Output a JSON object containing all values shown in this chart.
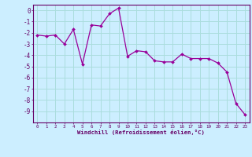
{
  "x": [
    0,
    1,
    2,
    3,
    4,
    5,
    6,
    7,
    8,
    9,
    10,
    11,
    12,
    13,
    14,
    15,
    16,
    17,
    18,
    19,
    20,
    21,
    22,
    23
  ],
  "y": [
    -2.2,
    -2.3,
    -2.2,
    -3.0,
    -1.7,
    -4.8,
    -1.3,
    -1.4,
    -0.3,
    0.2,
    -4.1,
    -3.6,
    -3.7,
    -4.5,
    -4.6,
    -4.6,
    -3.9,
    -4.3,
    -4.3,
    -4.3,
    -4.7,
    -5.5,
    -8.3,
    -9.3
  ],
  "line_color": "#990099",
  "marker_color": "#990099",
  "bg_color": "#cceeff",
  "grid_color": "#aadddd",
  "xlabel": "Windchill (Refroidissement éolien,°C)",
  "xlabel_color": "#660066",
  "ylim": [
    -10,
    0.5
  ],
  "xlim": [
    -0.5,
    23.5
  ],
  "yticks": [
    0,
    -1,
    -2,
    -3,
    -4,
    -5,
    -6,
    -7,
    -8,
    -9
  ],
  "xticks": [
    0,
    1,
    2,
    3,
    4,
    5,
    6,
    7,
    8,
    9,
    10,
    11,
    12,
    13,
    14,
    15,
    16,
    17,
    18,
    19,
    20,
    21,
    22,
    23
  ],
  "tick_color": "#660066",
  "spine_color": "#660066",
  "title_color": "#660066"
}
